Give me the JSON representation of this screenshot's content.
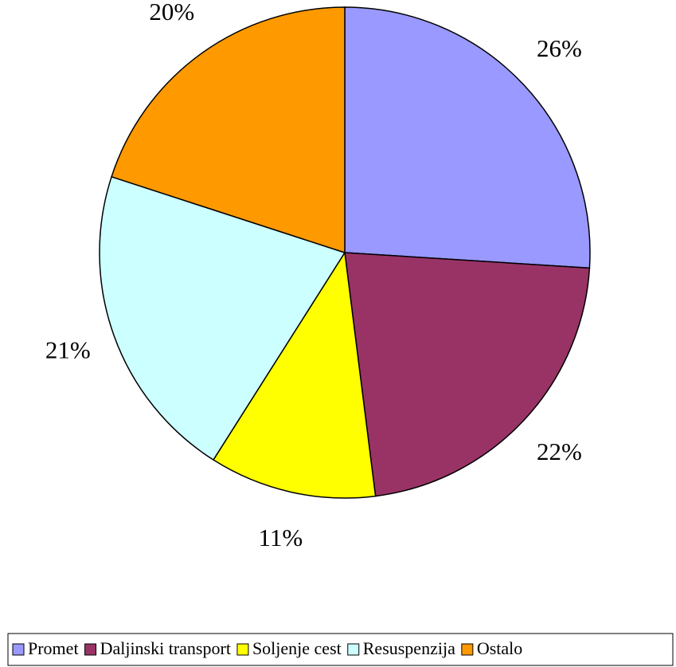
{
  "chart_data": {
    "type": "pie",
    "categories": [
      "Promet",
      "Daljinski transport",
      "Soljenje cest",
      "Resuspenzija",
      "Ostalo"
    ],
    "values": [
      26,
      22,
      11,
      21,
      20
    ],
    "value_labels": [
      "26%",
      "22%",
      "11%",
      "21%",
      "20%"
    ],
    "colors": [
      "#9999ff",
      "#993366",
      "#ffff00",
      "#ccffff",
      "#ff9900"
    ],
    "legend": "bottom"
  }
}
